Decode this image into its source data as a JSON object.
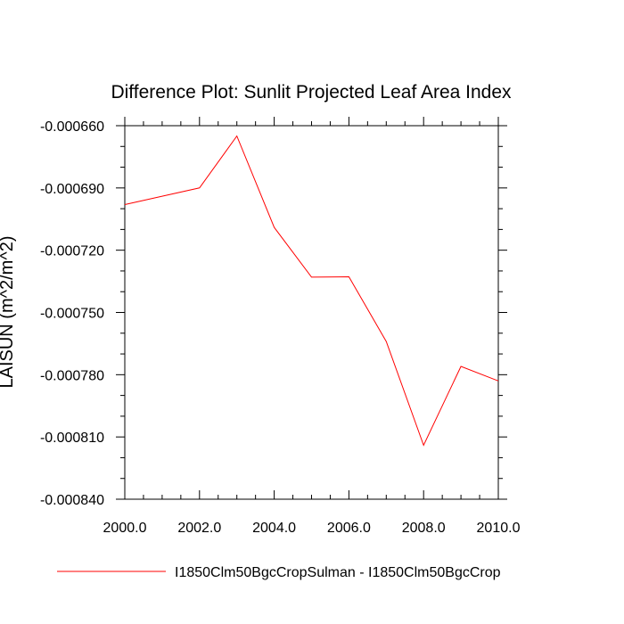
{
  "chart_data": {
    "type": "line",
    "title": "Difference Plot: Sunlit Projected Leaf Area Index",
    "ylabel": "LAISUN  (m^2/m^2)",
    "xlabel": "",
    "xlim": [
      2000.0,
      2010.0
    ],
    "ylim": [
      -0.00084,
      -0.00066
    ],
    "x_ticks": [
      2000.0,
      2002.0,
      2004.0,
      2006.0,
      2008.0,
      2010.0
    ],
    "x_tick_labels": [
      "2000.0",
      "2002.0",
      "2004.0",
      "2006.0",
      "2008.0",
      "2010.0"
    ],
    "y_ticks": [
      -0.00066,
      -0.00069,
      -0.00072,
      -0.00075,
      -0.00078,
      -0.00081,
      -0.00084
    ],
    "y_tick_labels": [
      "-0.000660",
      "-0.000690",
      "-0.000720",
      "-0.000750",
      "-0.000780",
      "-0.000810",
      "-0.000840"
    ],
    "grid": false,
    "legend_position": "bottom",
    "series": [
      {
        "name": "I1850Clm50BgcCropSulman - I1850Clm50BgcCrop",
        "color": "#ff0000",
        "x": [
          2000,
          2001,
          2002,
          2003,
          2004,
          2005,
          2006,
          2007,
          2008,
          2009,
          2010
        ],
        "y": [
          -0.000698,
          -0.000694,
          -0.00069,
          -0.000665,
          -0.000709,
          -0.000733,
          -0.0007328,
          -0.000764,
          -0.000814,
          -0.000776,
          -0.000783
        ]
      }
    ]
  }
}
